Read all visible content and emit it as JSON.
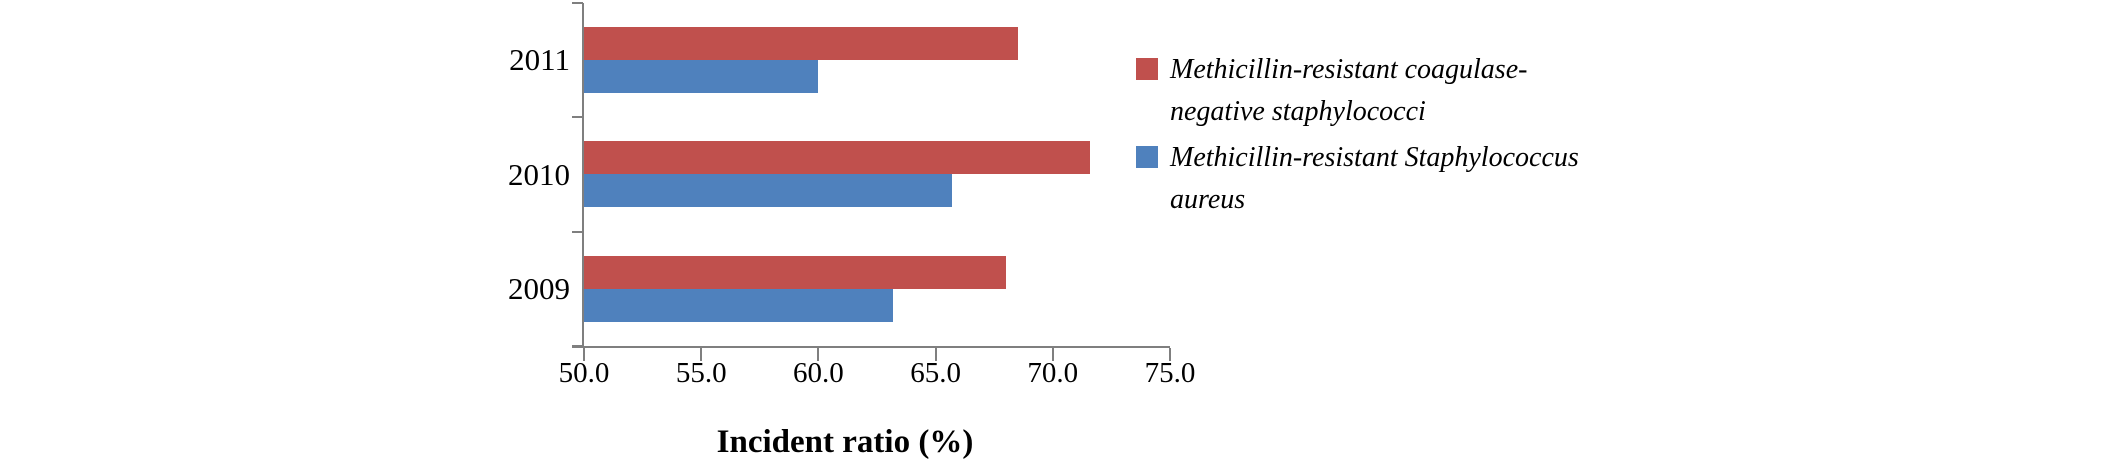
{
  "chart_data": {
    "type": "bar",
    "orientation": "horizontal",
    "title": "",
    "xlabel": "Incident ratio (%)",
    "ylabel": "",
    "categories": [
      "2011",
      "2010",
      "2009"
    ],
    "series": [
      {
        "name": "Methicillin-resistant coagulase-negative staphylococci",
        "color": "#C0504D",
        "values": [
          68.5,
          71.6,
          68.0
        ]
      },
      {
        "name": "Methicillin-resistant Staphylococcus aureus",
        "color": "#4F81BD",
        "values": [
          60.0,
          65.7,
          63.2
        ]
      }
    ],
    "xlim": [
      50.0,
      75.0
    ],
    "xticks": [
      "50.0",
      "55.0",
      "60.0",
      "65.0",
      "70.0",
      "75.0"
    ],
    "grid": false,
    "legend_position": "right",
    "legend": [
      {
        "lines": [
          "Methicillin-resistant coagulase-",
          "negative staphylococci"
        ],
        "color": "#C0504D"
      },
      {
        "lines": [
          "Methicillin-resistant Staphylococcus",
          "aureus"
        ],
        "color": "#4F81BD"
      }
    ]
  },
  "colors": {
    "axis": "#7F7F7F",
    "red_series": "#C0504D",
    "blue_series": "#4F81BD",
    "background": "#FFFFFF"
  }
}
